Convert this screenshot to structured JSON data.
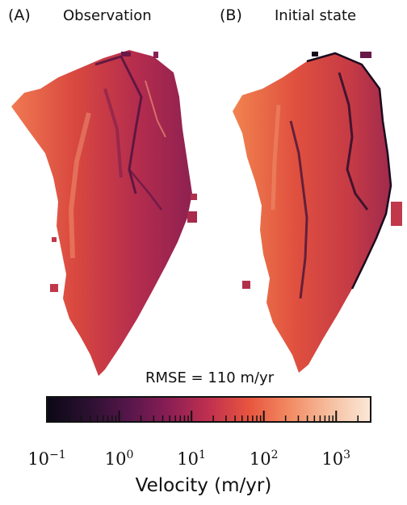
{
  "panels": [
    {
      "label": "(A)",
      "title": "Observation"
    },
    {
      "label": "(B)",
      "title": "Initial state"
    }
  ],
  "rmse_text": "RMSE = 110 m/yr",
  "colorbar": {
    "label": "Velocity (m/yr)",
    "scale": "log",
    "range": [
      0.1,
      3000
    ],
    "tick_bases": [
      "10",
      "10",
      "10",
      "10",
      "10"
    ],
    "tick_exponents": [
      "−1",
      "0",
      "1",
      "2",
      "3"
    ],
    "colormap_stops": [
      "#0b0816",
      "#2a1030",
      "#55164a",
      "#8a1e55",
      "#c0304f",
      "#e8553f",
      "#f28b63",
      "#f6bfa0",
      "#fbe8d8"
    ]
  }
}
